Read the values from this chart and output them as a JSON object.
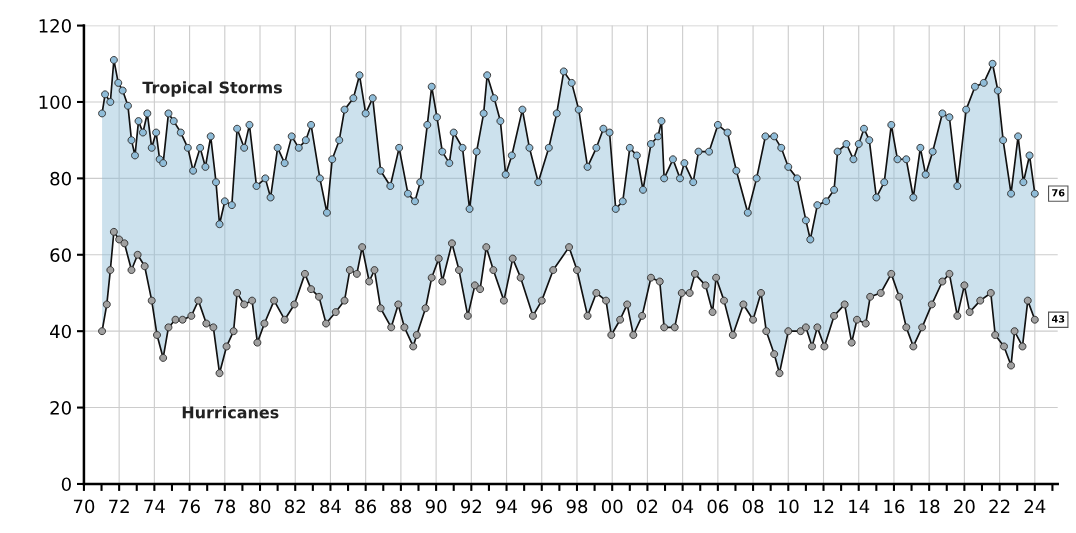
{
  "chart_data": {
    "type": "line",
    "marker": "circle",
    "grid": true,
    "legend": false,
    "xlim": [
      1970,
      2025.3
    ],
    "ylim": [
      0,
      120
    ],
    "yticks": [
      0,
      20,
      40,
      60,
      80,
      100,
      120
    ],
    "xticks": [
      {
        "value": 1970,
        "label": "70"
      },
      {
        "value": 1971,
        "label": null
      },
      {
        "value": 1972,
        "label": "72"
      },
      {
        "value": 1973,
        "label": null
      },
      {
        "value": 1974,
        "label": "74"
      },
      {
        "value": 1975,
        "label": null
      },
      {
        "value": 1976,
        "label": "76"
      },
      {
        "value": 1977,
        "label": null
      },
      {
        "value": 1978,
        "label": "78"
      },
      {
        "value": 1979,
        "label": null
      },
      {
        "value": 1980,
        "label": "80"
      },
      {
        "value": 1981,
        "label": null
      },
      {
        "value": 1982,
        "label": "82"
      },
      {
        "value": 1983,
        "label": null
      },
      {
        "value": 1984,
        "label": "84"
      },
      {
        "value": 1985,
        "label": null
      },
      {
        "value": 1986,
        "label": "86"
      },
      {
        "value": 1987,
        "label": null
      },
      {
        "value": 1988,
        "label": "88"
      },
      {
        "value": 1989,
        "label": null
      },
      {
        "value": 1990,
        "label": "90"
      },
      {
        "value": 1991,
        "label": null
      },
      {
        "value": 1992,
        "label": "92"
      },
      {
        "value": 1993,
        "label": null
      },
      {
        "value": 1994,
        "label": "94"
      },
      {
        "value": 1995,
        "label": null
      },
      {
        "value": 1996,
        "label": "96"
      },
      {
        "value": 1997,
        "label": null
      },
      {
        "value": 1998,
        "label": "98"
      },
      {
        "value": 1999,
        "label": null
      },
      {
        "value": 2000,
        "label": "00"
      },
      {
        "value": 2001,
        "label": null
      },
      {
        "value": 2002,
        "label": "02"
      },
      {
        "value": 2003,
        "label": null
      },
      {
        "value": 2004,
        "label": "04"
      },
      {
        "value": 2005,
        "label": null
      },
      {
        "value": 2006,
        "label": "06"
      },
      {
        "value": 2007,
        "label": null
      },
      {
        "value": 2008,
        "label": "08"
      },
      {
        "value": 2009,
        "label": null
      },
      {
        "value": 2010,
        "label": "10"
      },
      {
        "value": 2011,
        "label": null
      },
      {
        "value": 2012,
        "label": "12"
      },
      {
        "value": 2013,
        "label": null
      },
      {
        "value": 2014,
        "label": "14"
      },
      {
        "value": 2015,
        "label": null
      },
      {
        "value": 2016,
        "label": "16"
      },
      {
        "value": 2017,
        "label": null
      },
      {
        "value": 2018,
        "label": "18"
      },
      {
        "value": 2019,
        "label": null
      },
      {
        "value": 2020,
        "label": "20"
      },
      {
        "value": 2021,
        "label": null
      },
      {
        "value": 2022,
        "label": "22"
      },
      {
        "value": 2023,
        "label": null
      },
      {
        "value": 2024,
        "label": "24"
      },
      {
        "value": 2025,
        "label": null
      }
    ],
    "series": [
      {
        "name": "Tropical Storms",
        "type": "area",
        "color": "#8fbcd8",
        "x": [
          1971.03,
          1971.2,
          1971.5,
          1971.7,
          1971.95,
          1972.2,
          1972.5,
          1972.7,
          1972.9,
          1973.1,
          1973.35,
          1973.6,
          1973.85,
          1974.1,
          1974.3,
          1974.5,
          1974.8,
          1975.1,
          1975.5,
          1975.9,
          1976.2,
          1976.6,
          1976.9,
          1977.2,
          1977.5,
          1977.7,
          1978.0,
          1978.4,
          1978.7,
          1979.1,
          1979.4,
          1979.8,
          1980.3,
          1980.6,
          1981.0,
          1981.4,
          1981.8,
          1982.2,
          1982.6,
          1982.9,
          1983.4,
          1983.8,
          1984.1,
          1984.5,
          1984.8,
          1985.3,
          1985.65,
          1986.0,
          1986.4,
          1986.85,
          1987.4,
          1987.9,
          1988.4,
          1988.8,
          1989.1,
          1989.5,
          1989.75,
          1990.05,
          1990.35,
          1990.75,
          1991.0,
          1991.5,
          1991.9,
          1992.3,
          1992.7,
          1992.9,
          1993.3,
          1993.65,
          1993.95,
          1994.3,
          1994.9,
          1995.3,
          1995.8,
          1996.4,
          1996.85,
          1997.25,
          1997.7,
          1998.1,
          1998.6,
          1999.1,
          1999.5,
          1999.85,
          2000.2,
          2000.6,
          2001.0,
          2001.4,
          2001.75,
          2002.2,
          2002.6,
          2002.8,
          2002.95,
          2003.45,
          2003.85,
          2004.1,
          2004.6,
          2004.9,
          2005.5,
          2006.0,
          2006.55,
          2007.05,
          2007.7,
          2008.2,
          2008.7,
          2009.2,
          2009.6,
          2010.0,
          2010.5,
          2011.0,
          2011.25,
          2011.65,
          2012.15,
          2012.6,
          2012.8,
          2013.3,
          2013.7,
          2014.0,
          2014.3,
          2014.6,
          2015.0,
          2015.45,
          2015.85,
          2016.2,
          2016.7,
          2017.1,
          2017.5,
          2017.8,
          2018.2,
          2018.75,
          2019.15,
          2019.6,
          2020.1,
          2020.6,
          2021.1,
          2021.6,
          2021.9,
          2022.2,
          2022.65,
          2023.05,
          2023.35,
          2023.7,
          2024.0
        ],
        "values": [
          97,
          102,
          100,
          111,
          105,
          103,
          99,
          90,
          86,
          95,
          92,
          97,
          88,
          92,
          85,
          84,
          97,
          95,
          92,
          88,
          82,
          88,
          83,
          91,
          79,
          68,
          74,
          73,
          93,
          88,
          94,
          78,
          80,
          75,
          88,
          84,
          91,
          88,
          90,
          94,
          80,
          71,
          85,
          90,
          98,
          101,
          107,
          97,
          101,
          82,
          78,
          88,
          76,
          74,
          79,
          94,
          104,
          96,
          87,
          84,
          92,
          88,
          72,
          87,
          97,
          107,
          101,
          95,
          81,
          86,
          98,
          88,
          79,
          88,
          97,
          108,
          105,
          98,
          83,
          88,
          93,
          92,
          72,
          74,
          88,
          86,
          77,
          89,
          91,
          95,
          80,
          85,
          80,
          84,
          79,
          87,
          87,
          94,
          92,
          82,
          71,
          80,
          91,
          91,
          88,
          83,
          80,
          69,
          64,
          73,
          74,
          77,
          87,
          89,
          85,
          89,
          93,
          90,
          75,
          79,
          94,
          85,
          85,
          75,
          88,
          81,
          87,
          97,
          96,
          78,
          98,
          104,
          105,
          110,
          103,
          90,
          76,
          91,
          79,
          86,
          76
        ],
        "value_labels": [
          null,
          null,
          null,
          null,
          null,
          null,
          null,
          null,
          null,
          null,
          null,
          null,
          null,
          null,
          null,
          null,
          null,
          null,
          null,
          null,
          null,
          null,
          null,
          null,
          null,
          null,
          null,
          null,
          null,
          null,
          null,
          null,
          null,
          null,
          null,
          null,
          null,
          null,
          null,
          null,
          null,
          null,
          null,
          null,
          null,
          null,
          null,
          null,
          null,
          null,
          null,
          null,
          null,
          null,
          null,
          null,
          null,
          null,
          null,
          null,
          null,
          null,
          null,
          null,
          null,
          null,
          null,
          null,
          null,
          null,
          null,
          null,
          null,
          null,
          null,
          null,
          null,
          null,
          null,
          null,
          null,
          null,
          null,
          null,
          null,
          null,
          null,
          null,
          null,
          null,
          null,
          null,
          null,
          null,
          null,
          null,
          null,
          null,
          null,
          null,
          null,
          null,
          null,
          null,
          null,
          null,
          null,
          null,
          null,
          null,
          null,
          null,
          null,
          null,
          null,
          null,
          null,
          null,
          null,
          null,
          null,
          null,
          null,
          null,
          null,
          null,
          null,
          null,
          null,
          null,
          null,
          null,
          null,
          null,
          null,
          null,
          null,
          null,
          null,
          null,
          "76"
        ]
      },
      {
        "name": "Hurricanes",
        "color": "#a0a0a0",
        "x": [
          1971.03,
          1971.3,
          1971.5,
          1971.7,
          1972.0,
          1972.3,
          1972.7,
          1973.05,
          1973.45,
          1973.85,
          1974.15,
          1974.5,
          1974.8,
          1975.2,
          1975.6,
          1976.1,
          1976.5,
          1976.95,
          1977.35,
          1977.7,
          1978.1,
          1978.5,
          1978.7,
          1979.1,
          1979.55,
          1979.85,
          1980.25,
          1980.8,
          1981.4,
          1981.95,
          1982.55,
          1982.9,
          1983.35,
          1983.75,
          1984.3,
          1984.8,
          1985.1,
          1985.5,
          1985.8,
          1986.2,
          1986.5,
          1986.85,
          1987.45,
          1987.85,
          1988.2,
          1988.7,
          1988.9,
          1989.4,
          1989.75,
          1990.15,
          1990.35,
          1990.9,
          1991.3,
          1991.8,
          1992.2,
          1992.5,
          1992.85,
          1993.25,
          1993.85,
          1994.35,
          1994.8,
          1995.5,
          1996.0,
          1996.65,
          1997.55,
          1998.0,
          1998.6,
          1999.1,
          1999.65,
          1999.95,
          2000.45,
          2000.85,
          2001.2,
          2001.7,
          2002.2,
          2002.7,
          2002.95,
          2003.55,
          2003.95,
          2004.4,
          2004.7,
          2005.3,
          2005.7,
          2005.9,
          2006.35,
          2006.85,
          2007.45,
          2008.0,
          2008.45,
          2008.75,
          2009.2,
          2009.5,
          2010.0,
          2010.7,
          2011.0,
          2011.35,
          2011.65,
          2012.05,
          2012.6,
          2013.2,
          2013.6,
          2013.9,
          2014.4,
          2014.65,
          2015.25,
          2015.85,
          2016.3,
          2016.7,
          2017.1,
          2017.6,
          2018.15,
          2018.75,
          2019.15,
          2019.6,
          2020.0,
          2020.3,
          2020.9,
          2021.5,
          2021.75,
          2022.25,
          2022.65,
          2022.85,
          2023.3,
          2023.6,
          2024.0
        ],
        "values": [
          40,
          47,
          56,
          66,
          64,
          63,
          56,
          60,
          57,
          48,
          39,
          33,
          41,
          43,
          43,
          44,
          48,
          42,
          41,
          29,
          36,
          40,
          50,
          47,
          48,
          37,
          42,
          48,
          43,
          47,
          55,
          51,
          49,
          42,
          45,
          48,
          56,
          55,
          62,
          53,
          56,
          46,
          41,
          47,
          41,
          36,
          39,
          46,
          54,
          59,
          53,
          63,
          56,
          44,
          52,
          51,
          62,
          56,
          48,
          59,
          54,
          44,
          48,
          56,
          62,
          56,
          44,
          50,
          48,
          39,
          43,
          47,
          39,
          44,
          54,
          53,
          41,
          41,
          50,
          50,
          55,
          52,
          45,
          54,
          48,
          39,
          47,
          43,
          50,
          40,
          34,
          29,
          40,
          40,
          41,
          36,
          41,
          36,
          44,
          47,
          37,
          43,
          42,
          49,
          50,
          55,
          49,
          41,
          36,
          41,
          47,
          53,
          55,
          44,
          52,
          45,
          48,
          50,
          39,
          36,
          31,
          40,
          36,
          48,
          43
        ],
        "value_labels": [
          null,
          null,
          null,
          null,
          null,
          null,
          null,
          null,
          null,
          null,
          null,
          null,
          null,
          null,
          null,
          null,
          null,
          null,
          null,
          null,
          null,
          null,
          null,
          null,
          null,
          null,
          null,
          null,
          null,
          null,
          null,
          null,
          null,
          null,
          null,
          null,
          null,
          null,
          null,
          null,
          null,
          null,
          null,
          null,
          null,
          null,
          null,
          null,
          null,
          null,
          null,
          null,
          null,
          null,
          null,
          null,
          null,
          null,
          null,
          null,
          null,
          null,
          null,
          null,
          null,
          null,
          null,
          null,
          null,
          null,
          null,
          null,
          null,
          null,
          null,
          null,
          null,
          null,
          null,
          null,
          null,
          null,
          null,
          null,
          null,
          null,
          null,
          null,
          null,
          null,
          null,
          null,
          null,
          null,
          null,
          null,
          null,
          null,
          null,
          null,
          null,
          null,
          null,
          null,
          null,
          null,
          null,
          null,
          null,
          null,
          null,
          null,
          null,
          null,
          null,
          null,
          null,
          null,
          null,
          null,
          null,
          null,
          null,
          null,
          "43"
        ]
      }
    ]
  }
}
